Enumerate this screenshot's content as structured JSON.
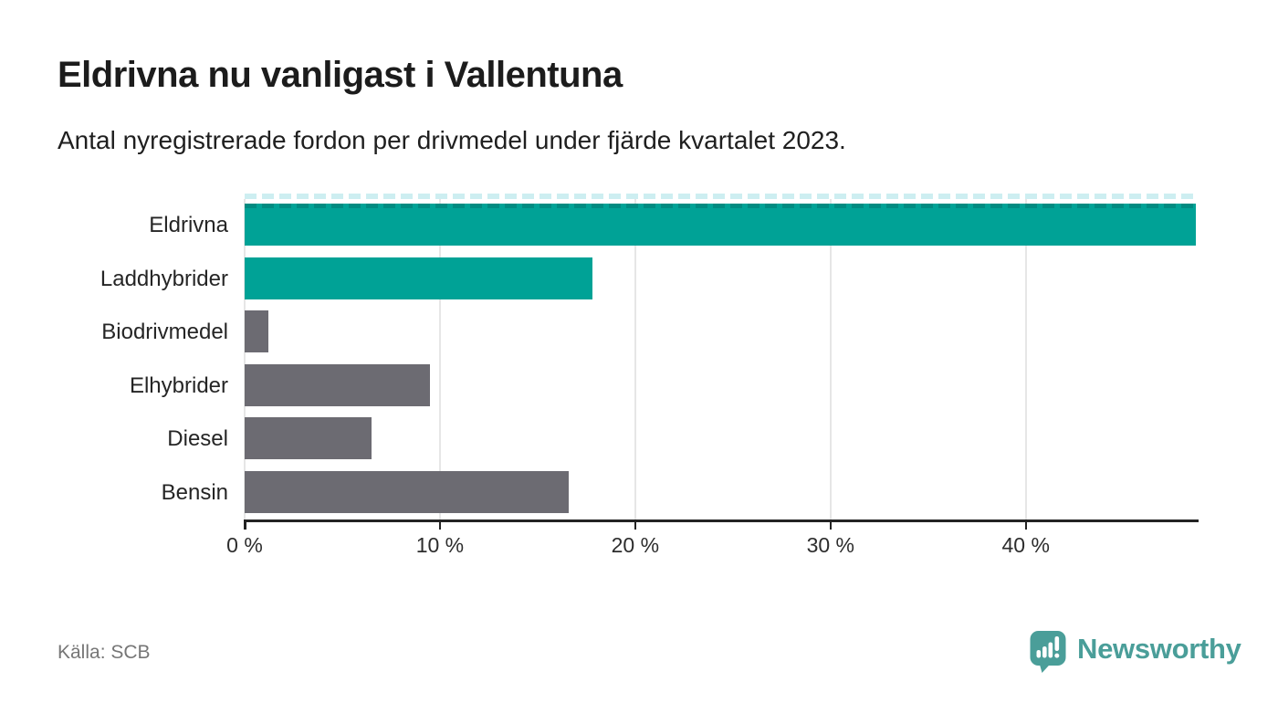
{
  "header": {
    "title": "Eldrivna nu vanligast i Vallentuna",
    "subtitle": "Antal nyregistrerade fordon per drivmedel under fjärde kvartalet 2023."
  },
  "chart_data": {
    "type": "bar",
    "orientation": "horizontal",
    "title": "Eldrivna nu vanligast i Vallentuna",
    "subtitle": "Antal nyregistrerade fordon per drivmedel under fjärde kvartalet 2023.",
    "categories": [
      "Eldrivna",
      "Laddhybrider",
      "Biodrivmedel",
      "Elhybrider",
      "Diesel",
      "Bensin"
    ],
    "values": [
      48.7,
      17.8,
      1.2,
      9.5,
      6.5,
      16.6
    ],
    "unit": "%",
    "bar_colors": [
      "#00a296",
      "#00a296",
      "#6c6b72",
      "#6c6b72",
      "#6c6b72",
      "#6c6b72"
    ],
    "highlight_color": "#00a296",
    "default_color": "#6c6b72",
    "xlim": [
      0,
      48.8
    ],
    "x_ticks": [
      {
        "value": 0,
        "label": "0 %"
      },
      {
        "value": 10,
        "label": "10 %"
      },
      {
        "value": 20,
        "label": "20 %"
      },
      {
        "value": 30,
        "label": "30 %"
      },
      {
        "value": 40,
        "label": "40 %"
      }
    ],
    "grid": true,
    "legend": false,
    "clipped_bar_index": 0,
    "xlabel": "",
    "ylabel": ""
  },
  "footer": {
    "source": "Källa: SCB",
    "brand": "Newsworthy",
    "brand_icon": "newsworthy-speech-bubble-chart-icon"
  },
  "colors": {
    "background": "#ffffff",
    "title_text": "#1c1c1c",
    "axis_text": "#2d2d2d",
    "axis_line": "#232323",
    "gridline": "#e6e6e6",
    "cut_dash": "#cdeef1",
    "source_text": "#767676",
    "brand_teal": "#4a9e99"
  }
}
